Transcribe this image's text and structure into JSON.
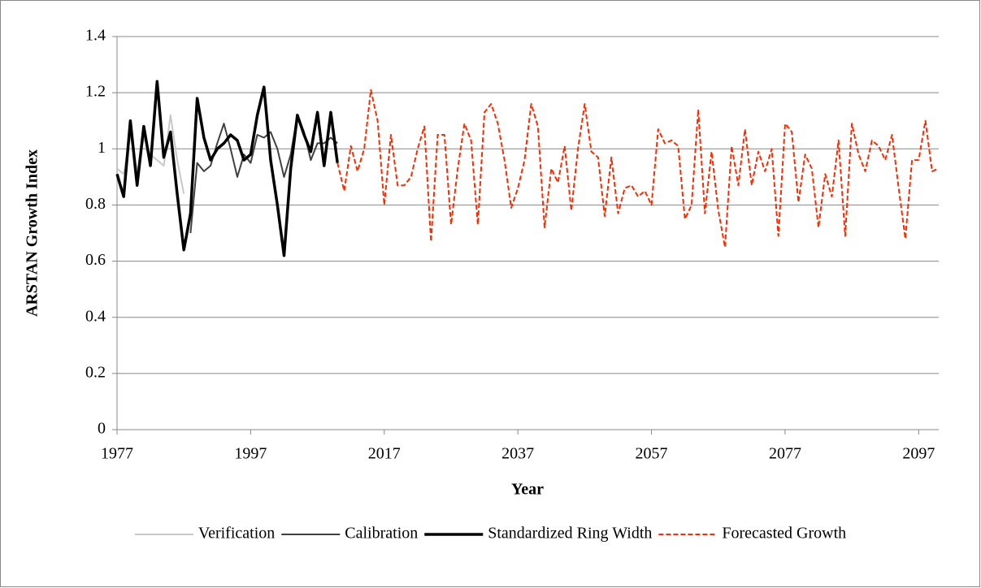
{
  "chart_data": {
    "type": "line",
    "x_label": "Year",
    "y_label": "ARSTAN Growth Index",
    "xlim": [
      1977,
      2100
    ],
    "xticks": [
      1977,
      1997,
      2017,
      2037,
      2057,
      2077,
      2097
    ],
    "ylim": [
      0,
      1.4
    ],
    "yticks": [
      0,
      0.2,
      0.4,
      0.6,
      0.8,
      1,
      1.2,
      1.4
    ],
    "grid": true,
    "legend": "bottom",
    "series": [
      {
        "name": "Verification",
        "color": "#c8c8c8",
        "width": 2,
        "dashed": false,
        "x": [
          1977,
          1978,
          1979,
          1980,
          1981,
          1982,
          1983,
          1984,
          1985,
          1986,
          1987
        ],
        "values": [
          0.93,
          0.91,
          1.05,
          0.92,
          1.04,
          0.98,
          0.96,
          0.94,
          1.12,
          0.96,
          0.84
        ]
      },
      {
        "name": "Calibration",
        "color": "#404040",
        "width": 2,
        "dashed": false,
        "x": [
          1988,
          1989,
          1990,
          1991,
          1992,
          1993,
          1994,
          1995,
          1996,
          1997,
          1998,
          1999,
          2000,
          2001,
          2002,
          2003,
          2004,
          2005,
          2006,
          2007,
          2008,
          2009,
          2010
        ],
        "values": [
          0.7,
          0.95,
          0.92,
          0.94,
          1.02,
          1.09,
          1.0,
          0.9,
          0.98,
          0.95,
          1.05,
          1.04,
          1.06,
          1.0,
          0.9,
          0.98,
          1.12,
          1.06,
          0.96,
          1.02,
          1.02,
          1.04,
          1.02
        ]
      },
      {
        "name": "Standardized Ring Width",
        "color": "#000000",
        "width": 3.5,
        "dashed": false,
        "x": [
          1977,
          1978,
          1979,
          1980,
          1981,
          1982,
          1983,
          1984,
          1985,
          1986,
          1987,
          1988,
          1989,
          1990,
          1991,
          1992,
          1993,
          1994,
          1995,
          1996,
          1997,
          1998,
          1999,
          2000,
          2001,
          2002,
          2003,
          2004,
          2005,
          2006,
          2007,
          2008,
          2009,
          2010
        ],
        "values": [
          0.91,
          0.83,
          1.1,
          0.87,
          1.08,
          0.94,
          1.24,
          0.97,
          1.06,
          0.84,
          0.64,
          0.77,
          1.18,
          1.04,
          0.96,
          1.0,
          1.02,
          1.05,
          1.03,
          0.96,
          0.98,
          1.12,
          1.22,
          0.96,
          0.8,
          0.62,
          0.93,
          1.12,
          1.05,
          0.99,
          1.13,
          0.94,
          1.13,
          0.95
        ]
      },
      {
        "name": "Forecasted Growth",
        "color": "#ff2a00",
        "width": 2,
        "dashed": true,
        "x": [
          2010,
          2011,
          2012,
          2013,
          2014,
          2015,
          2016,
          2017,
          2018,
          2019,
          2020,
          2021,
          2022,
          2023,
          2024,
          2025,
          2026,
          2027,
          2028,
          2029,
          2030,
          2031,
          2032,
          2033,
          2034,
          2035,
          2036,
          2037,
          2038,
          2039,
          2040,
          2041,
          2042,
          2043,
          2044,
          2045,
          2046,
          2047,
          2048,
          2049,
          2050,
          2051,
          2052,
          2053,
          2054,
          2055,
          2056,
          2057,
          2058,
          2059,
          2060,
          2061,
          2062,
          2063,
          2064,
          2065,
          2066,
          2067,
          2068,
          2069,
          2070,
          2071,
          2072,
          2073,
          2074,
          2075,
          2076,
          2077,
          2078,
          2079,
          2080,
          2081,
          2082,
          2083,
          2084,
          2085,
          2086,
          2087,
          2088,
          2089,
          2090,
          2091,
          2092,
          2093,
          2094,
          2095,
          2096,
          2097,
          2098,
          2099,
          2100
        ],
        "values": [
          0.95,
          0.85,
          1.01,
          0.92,
          1.0,
          1.21,
          1.1,
          0.8,
          1.05,
          0.87,
          0.87,
          0.9,
          1.0,
          1.08,
          0.67,
          1.05,
          1.05,
          0.73,
          0.93,
          1.09,
          1.03,
          0.73,
          1.13,
          1.16,
          1.09,
          0.96,
          0.79,
          0.86,
          0.96,
          1.16,
          1.08,
          0.72,
          0.93,
          0.88,
          1.01,
          0.78,
          1.0,
          1.16,
          0.99,
          0.97,
          0.76,
          0.97,
          0.77,
          0.86,
          0.87,
          0.83,
          0.85,
          0.8,
          1.07,
          1.02,
          1.03,
          1.01,
          0.75,
          0.8,
          1.14,
          0.77,
          0.99,
          0.78,
          0.65,
          1.01,
          0.87,
          1.07,
          0.87,
          0.99,
          0.92,
          1.0,
          0.69,
          1.09,
          1.06,
          0.81,
          0.98,
          0.93,
          0.72,
          0.91,
          0.83,
          1.03,
          0.69,
          1.09,
          0.98,
          0.92,
          1.03,
          1.01,
          0.96,
          1.05,
          0.86,
          0.68,
          0.96,
          0.96,
          1.1,
          0.92,
          0.93
        ]
      }
    ]
  }
}
